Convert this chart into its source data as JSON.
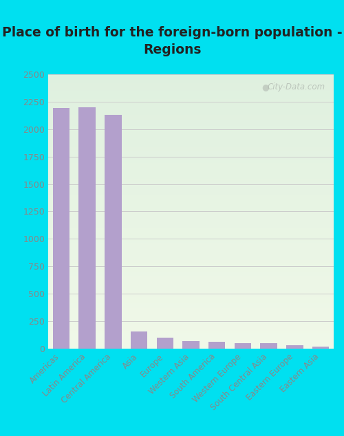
{
  "title": "Place of birth for the foreign-born population -\nRegions",
  "categories": [
    "Americas",
    "Latin America",
    "Central America",
    "Asia",
    "Europe",
    "Western Asia",
    "South America",
    "Western Europe",
    "South Central Asia",
    "Eastern Europe",
    "Eastern Asia"
  ],
  "values": [
    2195,
    2200,
    2130,
    155,
    100,
    70,
    65,
    50,
    50,
    30,
    18
  ],
  "bar_color": "#b3a0cc",
  "ylim": [
    0,
    2500
  ],
  "yticks": [
    0,
    250,
    500,
    750,
    1000,
    1250,
    1500,
    1750,
    2000,
    2250,
    2500
  ],
  "background_outer": "#00e0f0",
  "bg_top_color": "#dff0df",
  "bg_bottom_color": "#f0f8e8",
  "grid_color": "#cccccc",
  "tick_label_color": "#888888",
  "title_color": "#222222",
  "watermark_text": "City-Data.com",
  "title_fontsize": 13.5,
  "tick_fontsize": 8.5,
  "ytick_fontsize": 9.0
}
